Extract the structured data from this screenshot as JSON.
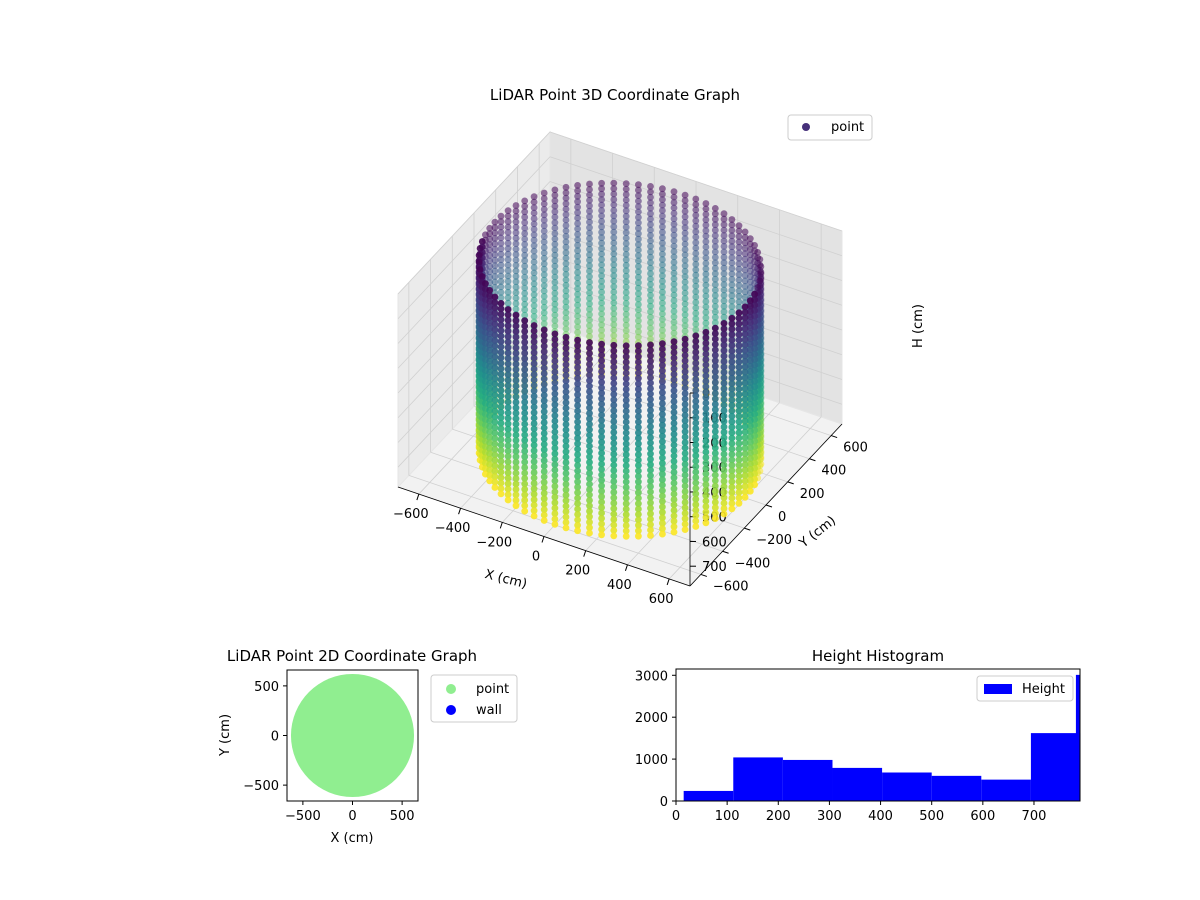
{
  "figure": {
    "background": "#ffffff"
  },
  "chart_data": [
    {
      "id": "lidar-3d",
      "type": "scatter",
      "title": "LiDAR Point 3D Coordinate Graph",
      "xlabel": "X (cm)",
      "ylabel": "Y (cm)",
      "zlabel": "H (cm)",
      "xlim": [
        -700,
        700
      ],
      "ylim": [
        -700,
        700
      ],
      "zlim": [
        0,
        780
      ],
      "z_axis_inverted": true,
      "grid": true,
      "colormap": "viridis",
      "legend": {
        "placement": "top-right",
        "entries": [
          {
            "label": "point",
            "color": "#46307a"
          }
        ]
      },
      "x_ticks": [
        -600,
        -400,
        -200,
        0,
        200,
        400,
        600
      ],
      "y_ticks": [
        -600,
        -400,
        -200,
        0,
        200,
        400,
        600
      ],
      "z_ticks": [
        0,
        100,
        200,
        300,
        400,
        500,
        600,
        700
      ],
      "series": [
        {
          "name": "point",
          "shape": "cylindrical wall",
          "radius": 600,
          "height_range": [
            0,
            780
          ],
          "wall_point_azimuth_step_deg": 5
        }
      ]
    },
    {
      "id": "lidar-2d",
      "type": "scatter",
      "title": "LiDAR Point 2D Coordinate Graph",
      "xlabel": "X (cm)",
      "ylabel": "Y (cm)",
      "xlim": [
        -660,
        660
      ],
      "ylim": [
        -660,
        660
      ],
      "x_ticks": [
        -500,
        0,
        500
      ],
      "y_ticks": [
        -500,
        0,
        500
      ],
      "legend": {
        "placement": "outside-right",
        "entries": [
          {
            "label": "point",
            "color": "#90ee90"
          },
          {
            "label": "wall",
            "color": "#0000ff"
          }
        ]
      },
      "series": [
        {
          "name": "point",
          "color": "#90ee90",
          "shape": "filled disk",
          "center": [
            0,
            0
          ],
          "radius": 620
        },
        {
          "name": "wall",
          "color": "#0000ff",
          "x": [],
          "y": []
        }
      ]
    },
    {
      "id": "height-histogram",
      "type": "bar",
      "title": "Height Histogram",
      "xlim": [
        0,
        790
      ],
      "ylim": [
        0,
        3150
      ],
      "x_ticks": [
        0,
        100,
        200,
        300,
        400,
        500,
        600,
        700
      ],
      "y_ticks": [
        0,
        1000,
        2000,
        3000
      ],
      "color": "#0000ff",
      "legend": {
        "placement": "top-right",
        "entries": [
          {
            "label": "Height",
            "color": "#0000ff"
          }
        ]
      },
      "series": [
        {
          "name": "Height",
          "bin_edges": [
            15,
            112,
            209,
            306,
            403,
            500,
            597,
            694,
            791
          ],
          "values": [
            240,
            1040,
            980,
            790,
            680,
            600,
            510,
            1620
          ]
        },
        {
          "name": "Height",
          "bin_edges": [
            782,
            790
          ],
          "values": [
            3010
          ]
        }
      ]
    }
  ]
}
